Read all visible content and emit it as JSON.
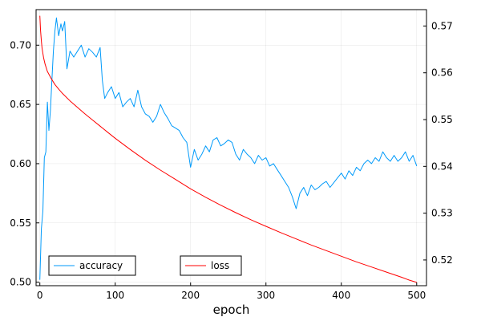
{
  "chart_data": {
    "type": "line",
    "title": "",
    "xlabel": "epoch",
    "ylabel": "",
    "y2label": "",
    "grid": true,
    "xlim": [
      -5,
      513
    ],
    "x_ticks": [
      0,
      100,
      200,
      300,
      400,
      500
    ],
    "y_left": {
      "lim": [
        0.497,
        0.73
      ],
      "ticks": [
        0.5,
        0.55,
        0.6,
        0.65,
        0.7
      ],
      "tick_labels": [
        "0.50",
        "0.55",
        "0.60",
        "0.65",
        "0.70"
      ]
    },
    "y_right": {
      "lim": [
        0.5145,
        0.5735
      ],
      "ticks": [
        0.52,
        0.53,
        0.54,
        0.55,
        0.56,
        0.57
      ],
      "tick_labels": [
        "0.52",
        "0.53",
        "0.54",
        "0.55",
        "0.56",
        "0.57"
      ]
    },
    "legends": [
      {
        "label": "accuracy",
        "color": "#009AFA",
        "placement": "bottom-left"
      },
      {
        "label": "loss",
        "color": "#FF0000",
        "placement": "bottom-center"
      }
    ],
    "series": [
      {
        "name": "accuracy",
        "axis": "left",
        "color": "#009AFA",
        "x": [
          0,
          2,
          4,
          6,
          8,
          10,
          12,
          14,
          16,
          18,
          20,
          22,
          25,
          28,
          30,
          33,
          36,
          40,
          45,
          50,
          55,
          60,
          65,
          70,
          75,
          80,
          83,
          86,
          90,
          95,
          100,
          105,
          110,
          115,
          120,
          125,
          130,
          135,
          140,
          145,
          150,
          155,
          160,
          165,
          170,
          175,
          180,
          185,
          190,
          195,
          200,
          205,
          210,
          215,
          220,
          225,
          230,
          235,
          240,
          245,
          250,
          255,
          260,
          265,
          270,
          275,
          280,
          285,
          290,
          295,
          300,
          305,
          310,
          315,
          320,
          325,
          330,
          335,
          340,
          345,
          350,
          355,
          360,
          365,
          370,
          375,
          380,
          385,
          390,
          395,
          400,
          405,
          410,
          415,
          420,
          425,
          430,
          435,
          440,
          445,
          450,
          455,
          460,
          465,
          470,
          475,
          480,
          485,
          490,
          495,
          500
        ],
        "y": [
          0.502,
          0.545,
          0.56,
          0.605,
          0.61,
          0.652,
          0.628,
          0.645,
          0.67,
          0.695,
          0.712,
          0.723,
          0.708,
          0.718,
          0.712,
          0.72,
          0.68,
          0.695,
          0.69,
          0.695,
          0.7,
          0.69,
          0.697,
          0.694,
          0.69,
          0.698,
          0.67,
          0.655,
          0.66,
          0.665,
          0.655,
          0.66,
          0.648,
          0.652,
          0.655,
          0.648,
          0.662,
          0.648,
          0.642,
          0.64,
          0.635,
          0.64,
          0.65,
          0.643,
          0.638,
          0.632,
          0.63,
          0.628,
          0.622,
          0.618,
          0.597,
          0.612,
          0.603,
          0.608,
          0.615,
          0.61,
          0.62,
          0.622,
          0.615,
          0.617,
          0.62,
          0.618,
          0.608,
          0.603,
          0.612,
          0.608,
          0.605,
          0.6,
          0.607,
          0.603,
          0.605,
          0.598,
          0.6,
          0.595,
          0.59,
          0.585,
          0.58,
          0.572,
          0.562,
          0.575,
          0.58,
          0.573,
          0.582,
          0.578,
          0.58,
          0.583,
          0.585,
          0.58,
          0.584,
          0.588,
          0.592,
          0.587,
          0.594,
          0.59,
          0.597,
          0.594,
          0.6,
          0.603,
          0.6,
          0.605,
          0.602,
          0.61,
          0.605,
          0.602,
          0.607,
          0.602,
          0.605,
          0.61,
          0.602,
          0.607,
          0.598
        ]
      },
      {
        "name": "loss",
        "axis": "right",
        "color": "#FF0000",
        "x": [
          0,
          1,
          2,
          3,
          5,
          7,
          10,
          15,
          20,
          25,
          30,
          40,
          50,
          60,
          70,
          80,
          90,
          100,
          120,
          140,
          160,
          180,
          200,
          220,
          240,
          260,
          280,
          300,
          320,
          340,
          360,
          380,
          400,
          420,
          440,
          460,
          480,
          490,
          500
        ],
        "y": [
          0.5722,
          0.569,
          0.5668,
          0.5652,
          0.5632,
          0.5618,
          0.5603,
          0.5588,
          0.5575,
          0.5565,
          0.5556,
          0.554,
          0.5526,
          0.5512,
          0.5499,
          0.5486,
          0.5473,
          0.546,
          0.5436,
          0.5413,
          0.5392,
          0.5372,
          0.5352,
          0.5334,
          0.5317,
          0.5301,
          0.5286,
          0.5272,
          0.5258,
          0.5245,
          0.5232,
          0.522,
          0.5208,
          0.5196,
          0.5185,
          0.5174,
          0.5163,
          0.5157,
          0.5152
        ]
      }
    ]
  }
}
